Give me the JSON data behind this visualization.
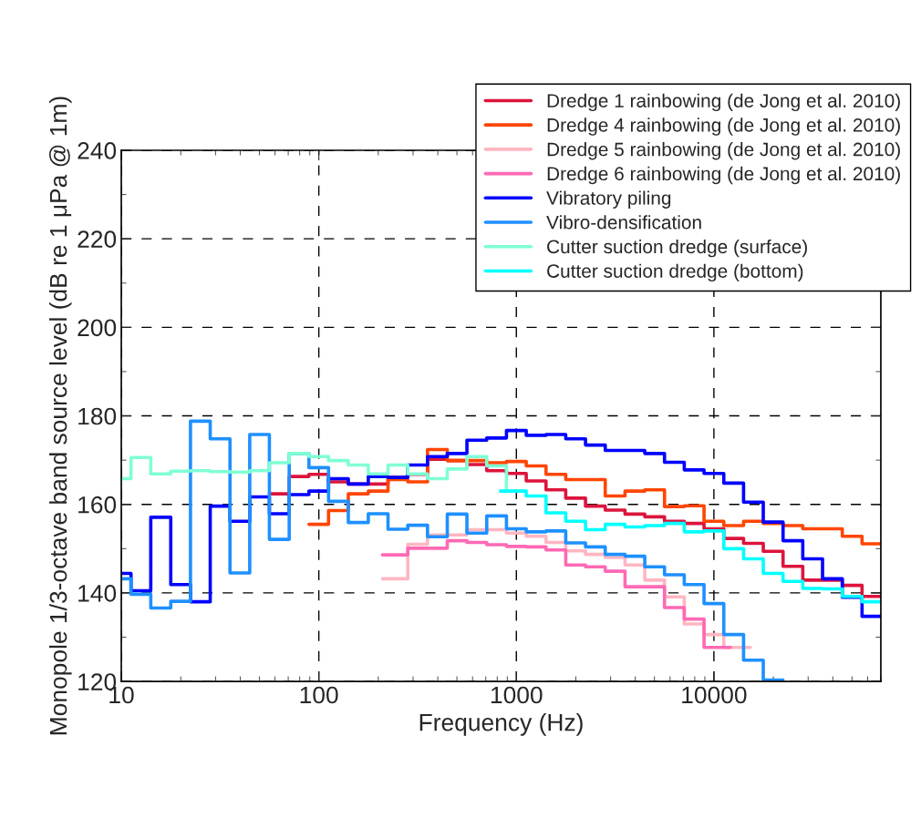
{
  "chart_data": {
    "type": "step",
    "xlabel": "Frequency (Hz)",
    "ylabel": "Monopole 1/3-octave band source level (dB re 1 μPa @ 1m)",
    "log": "x",
    "xlim": [
      10,
      70000
    ],
    "xticks": [
      10,
      100,
      1000,
      10000
    ],
    "ylim": [
      120,
      240
    ],
    "yticks": [
      120,
      140,
      160,
      180,
      200,
      220,
      240
    ],
    "grid": true,
    "legend": "top right",
    "line_style": "solid",
    "marker": "none",
    "series": [
      {
        "name": "Dredge 1 rainbowing (de Jong et al. 2010)",
        "color": "#dc143c",
        "x": [
          56.2,
          70.8,
          89.1,
          112,
          141,
          178,
          224,
          282,
          355,
          447,
          562,
          708,
          891,
          1122,
          1413,
          1778,
          2239,
          2818,
          3548,
          4467,
          5623,
          7079,
          8913,
          11220,
          14130,
          17780,
          22390,
          28180,
          35480,
          44670,
          56230,
          70000
        ],
        "values": [
          162.4,
          166.3,
          166.8,
          165.1,
          164.6,
          164.6,
          166.1,
          166.8,
          170.2,
          169.9,
          169.0,
          167.6,
          167.0,
          165.3,
          163.3,
          161.4,
          159.6,
          158.7,
          157.8,
          157.2,
          156.2,
          155.7,
          154.5,
          152.3,
          151.2,
          149.4,
          146.0,
          142.9,
          142.9,
          141.7,
          139.2,
          139.2
        ]
      },
      {
        "name": "Dredge 4 rainbowing (de Jong et al. 2010)",
        "color": "#ff4500",
        "x": [
          89.1,
          112,
          141,
          178,
          224,
          282,
          355,
          447,
          562,
          708,
          891,
          1122,
          1413,
          1778,
          2239,
          2818,
          3548,
          4467,
          5623,
          7079,
          8913,
          11220,
          14130,
          17780,
          22390,
          28180,
          35480,
          44670,
          56230,
          70000
        ],
        "values": [
          155.5,
          158.6,
          162.4,
          163.0,
          165.6,
          165.1,
          172.4,
          169.9,
          169.9,
          169.4,
          169.7,
          168.7,
          166.8,
          165.6,
          165.6,
          161.9,
          163.0,
          163.3,
          159.5,
          159.7,
          156.2,
          155.2,
          156.2,
          155.7,
          155.2,
          154.5,
          154.5,
          152.8,
          151.1,
          151.1
        ]
      },
      {
        "name": "Dredge 5 rainbowing (de Jong et al. 2010)",
        "color": "#ffb6c1",
        "x": [
          210,
          282,
          355,
          447,
          562,
          708,
          891,
          1122,
          1413,
          1778,
          2239,
          2818,
          3548,
          4467,
          5623,
          7079,
          8913,
          11220,
          15300
        ],
        "values": [
          143.2,
          151.0,
          153.1,
          153.1,
          154.3,
          154.3,
          153.5,
          152.8,
          151.4,
          149.5,
          148.7,
          148.0,
          146.3,
          142.9,
          139.1,
          133.0,
          130.6,
          127.7,
          127.7
        ]
      },
      {
        "name": "Dredge 6 rainbowing (de Jong et al. 2010)",
        "color": "#ff69b4",
        "x": [
          210,
          282,
          355,
          447,
          562,
          708,
          891,
          1122,
          1413,
          1778,
          2239,
          2818,
          3548,
          4467,
          5623,
          7079,
          8913,
          12100
        ],
        "values": [
          148.6,
          150.1,
          150.1,
          151.8,
          151.4,
          150.9,
          150.5,
          150.4,
          149.7,
          146.3,
          145.9,
          144.9,
          141.4,
          141.4,
          136.7,
          134.1,
          127.7,
          127.7
        ]
      },
      {
        "name": "Vibratory piling",
        "color": "#0000ff",
        "x": [
          10,
          11.2,
          14.1,
          17.8,
          22.4,
          28.2,
          35.5,
          44.7,
          56.2,
          70.8,
          89.1,
          112,
          141,
          178,
          224,
          282,
          355,
          447,
          562,
          708,
          891,
          1122,
          1413,
          1778,
          2239,
          2818,
          3548,
          4467,
          5623,
          7079,
          8913,
          11220,
          14130,
          17780,
          22390,
          28180,
          35480,
          44670,
          56230,
          70000
        ],
        "values": [
          144.4,
          140.5,
          157.1,
          141.9,
          138.0,
          159.6,
          156.2,
          161.7,
          157.9,
          162.2,
          163.0,
          165.8,
          164.6,
          166.3,
          166.1,
          168.9,
          170.8,
          171.5,
          174.5,
          175.0,
          176.7,
          175.6,
          175.8,
          174.8,
          173.4,
          172.2,
          172.2,
          171.5,
          169.5,
          167.8,
          167.0,
          164.8,
          160.5,
          156.0,
          151.8,
          147.7,
          143.2,
          139.0,
          134.7,
          134.7
        ]
      },
      {
        "name": "Vibro-densification",
        "color": "#1e90ff",
        "x": [
          10,
          11.2,
          14.1,
          17.8,
          22.4,
          28.2,
          35.5,
          44.7,
          56.2,
          70.8,
          89.1,
          112,
          141,
          178,
          224,
          282,
          355,
          447,
          562,
          708,
          891,
          1122,
          1413,
          1778,
          2239,
          2818,
          3548,
          4467,
          5623,
          7079,
          8913,
          11220,
          14130,
          17780,
          22390
        ],
        "values": [
          143.2,
          139.7,
          136.6,
          138.1,
          178.8,
          174.8,
          144.5,
          175.8,
          152.1,
          171.5,
          168.3,
          160.7,
          155.9,
          157.9,
          154.4,
          155.3,
          152.7,
          157.8,
          153.5,
          157.4,
          154.5,
          153.8,
          154.0,
          151.3,
          150.4,
          148.7,
          148.3,
          145.9,
          144.1,
          141.9,
          137.6,
          130.6,
          124.8,
          120.3,
          120.3
        ]
      },
      {
        "name": "Cutter suction dredge (surface)",
        "color": "#7fffd4",
        "x": [
          10,
          11.2,
          14.1,
          17.8,
          22.4,
          28.2,
          35.5,
          44.7,
          56.2,
          70.8,
          89.1,
          112,
          141,
          178,
          224,
          282,
          355,
          447,
          562,
          708,
          891,
          1122
        ],
        "values": [
          165.8,
          170.6,
          166.9,
          167.5,
          167.6,
          167.4,
          167.3,
          167.6,
          169.4,
          171.5,
          170.8,
          169.9,
          168.9,
          166.9,
          168.9,
          166.9,
          165.8,
          168.0,
          170.8,
          168.7,
          163.0,
          163.0
        ]
      },
      {
        "name": "Cutter suction dredge (bottom)",
        "color": "#00ffff",
        "x": [
          830,
          1122,
          1413,
          1778,
          2239,
          2818,
          3548,
          4467,
          5623,
          7079,
          8913,
          11220,
          14130,
          17780,
          22390,
          28180,
          35480,
          44670,
          56230,
          70000
        ],
        "values": [
          163.0,
          161.9,
          158.1,
          156.2,
          154.3,
          155.5,
          154.9,
          155.2,
          155.7,
          153.8,
          154.0,
          150.0,
          147.7,
          144.4,
          142.6,
          141.0,
          140.9,
          139.2,
          138.0,
          138.0
        ]
      }
    ]
  }
}
